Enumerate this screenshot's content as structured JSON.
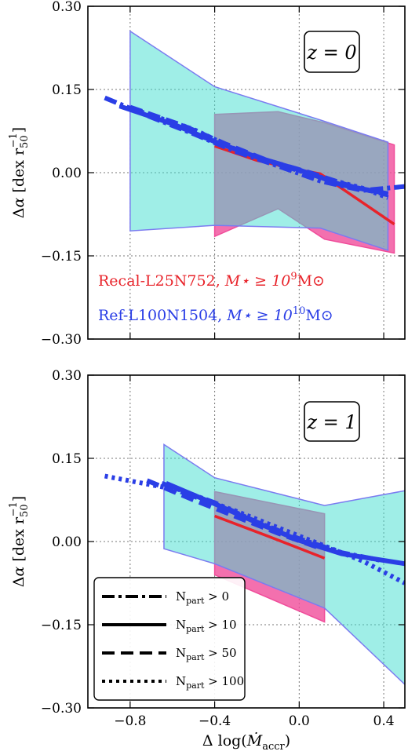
{
  "colors": {
    "recal": "#e8232a",
    "ref": "#2a3ee6",
    "recal_fill": "#f04c9a",
    "ref_fill": "#40ddd0",
    "overlap_fill": "#6aa8f0",
    "band_edge": "#7b7bf0"
  },
  "chart_data": [
    {
      "type": "line",
      "panel_label": "z = 0",
      "xlabel": "Δ log(Ṁ_accr)",
      "ylabel": "Δα [dex r50^−1]",
      "xlim": [
        -1.0,
        0.5
      ],
      "ylim": [
        -0.3,
        0.3
      ],
      "xticks": [
        -0.8,
        -0.4,
        0.0,
        0.4
      ],
      "yticks": [
        -0.3,
        -0.15,
        0.0,
        0.15,
        0.3
      ],
      "ytick_labels": [
        "−0.30",
        "−0.15",
        "0.00",
        "0.15",
        "0.30"
      ],
      "grid": true,
      "annotations": [
        {
          "prefix": "Recal-L25N752, ",
          "mass": "M⋆ ≥ 10",
          "exp": "9",
          "unit": "M⊙",
          "color": "recal"
        },
        {
          "prefix": "Ref-L100N1504, ",
          "mass": "M⋆ ≥ 10",
          "exp": "10",
          "unit": "M⊙",
          "color": "ref"
        }
      ],
      "bands": [
        {
          "series": "Recal",
          "x": [
            -0.4,
            -0.1,
            0.12,
            0.45
          ],
          "upper": [
            0.105,
            0.11,
            0.09,
            0.05
          ],
          "lower": [
            -0.115,
            -0.065,
            -0.12,
            -0.145
          ]
        },
        {
          "series": "Ref",
          "x": [
            -0.8,
            -0.4,
            0.1,
            0.42
          ],
          "upper": [
            0.255,
            0.155,
            0.095,
            0.055
          ],
          "lower": [
            -0.105,
            -0.095,
            -0.1,
            -0.14
          ]
        }
      ],
      "series": [
        {
          "name": "Recal N_part > 10",
          "style": "solid",
          "color": "recal",
          "x": [
            -0.4,
            -0.2,
            0.0,
            0.1,
            0.45
          ],
          "y": [
            0.048,
            0.022,
            0.005,
            -0.002,
            -0.093
          ]
        },
        {
          "name": "Ref N_part > 0",
          "style": "dashdot",
          "color": "ref",
          "x": [
            -0.92,
            -0.7,
            -0.5,
            -0.3,
            -0.1,
            0.1,
            0.3,
            0.5
          ],
          "y": [
            0.135,
            0.1,
            0.07,
            0.038,
            0.012,
            -0.015,
            -0.032,
            -0.025
          ]
        },
        {
          "name": "Ref N_part > 10",
          "style": "solid",
          "color": "ref",
          "x": [
            -0.85,
            -0.6,
            -0.4,
            -0.2,
            0.0,
            0.2,
            0.42
          ],
          "y": [
            0.12,
            0.088,
            0.056,
            0.028,
            0.005,
            -0.022,
            -0.038
          ]
        },
        {
          "name": "Ref N_part > 50",
          "style": "dashed",
          "color": "ref",
          "x": [
            -0.8,
            -0.55,
            -0.35,
            -0.15,
            0.05,
            0.25,
            0.42
          ],
          "y": [
            0.118,
            0.085,
            0.052,
            0.022,
            0.0,
            -0.025,
            -0.04
          ]
        },
        {
          "name": "Ref N_part > 100",
          "style": "dotted",
          "color": "ref",
          "x": [
            -0.75,
            -0.5,
            -0.3,
            -0.1,
            0.1,
            0.3,
            0.42
          ],
          "y": [
            0.11,
            0.078,
            0.042,
            0.015,
            -0.008,
            -0.028,
            -0.045
          ]
        }
      ]
    },
    {
      "type": "line",
      "panel_label": "z = 1",
      "xlabel": "Δ log(Ṁ_accr)",
      "ylabel": "Δα [dex r50^−1]",
      "xlim": [
        -1.0,
        0.5
      ],
      "ylim": [
        -0.3,
        0.3
      ],
      "xticks": [
        -0.8,
        -0.4,
        0.0,
        0.4
      ],
      "xtick_labels": [
        "−0.8",
        "−0.4",
        "0.0",
        "0.4"
      ],
      "yticks": [
        -0.3,
        -0.15,
        0.0,
        0.15,
        0.3
      ],
      "ytick_labels": [
        "−0.30",
        "−0.15",
        "0.00",
        "0.15",
        "0.30"
      ],
      "grid": true,
      "legend": {
        "placement": "lower-left",
        "entries": [
          {
            "label": "N",
            "sub": "part",
            "tail": " > 0",
            "style": "dashdot"
          },
          {
            "label": "N",
            "sub": "part",
            "tail": " > 10",
            "style": "solid"
          },
          {
            "label": "N",
            "sub": "part",
            "tail": " > 50",
            "style": "dashed"
          },
          {
            "label": "N",
            "sub": "part",
            "tail": " > 100",
            "style": "dotted"
          }
        ]
      },
      "bands": [
        {
          "series": "Recal",
          "x": [
            -0.4,
            0.12
          ],
          "upper": [
            0.09,
            0.05
          ],
          "lower": [
            -0.06,
            -0.145
          ]
        },
        {
          "series": "Ref",
          "x": [
            -0.64,
            -0.4,
            0.12,
            0.52
          ],
          "upper": [
            0.175,
            0.115,
            0.065,
            0.093
          ],
          "lower": [
            -0.013,
            -0.04,
            -0.12,
            -0.265
          ]
        }
      ],
      "series": [
        {
          "name": "Recal N_part > 10",
          "style": "solid",
          "color": "recal",
          "x": [
            -0.4,
            -0.15,
            0.12
          ],
          "y": [
            0.046,
            0.01,
            -0.03
          ]
        },
        {
          "name": "Ref N_part > 0",
          "style": "dashdot",
          "color": "ref",
          "x": [
            -0.65,
            -0.4,
            -0.2,
            0.0,
            0.2,
            0.4
          ],
          "y": [
            0.105,
            0.07,
            0.035,
            0.005,
            -0.02,
            -0.035
          ]
        },
        {
          "name": "Ref N_part > 10",
          "style": "solid",
          "color": "ref",
          "x": [
            -0.63,
            -0.4,
            -0.2,
            0.0,
            0.2,
            0.5
          ],
          "y": [
            0.105,
            0.068,
            0.034,
            0.002,
            -0.022,
            -0.04
          ]
        },
        {
          "name": "Ref N_part > 50",
          "style": "dashed",
          "color": "ref",
          "x": [
            -0.72,
            -0.5,
            -0.3,
            -0.1,
            0.1
          ],
          "y": [
            0.11,
            0.075,
            0.045,
            0.015,
            -0.012
          ]
        },
        {
          "name": "Ref N_part > 100",
          "style": "dotted",
          "color": "ref",
          "x": [
            -0.92,
            -0.6,
            -0.3,
            0.0,
            0.3,
            0.5
          ],
          "y": [
            0.118,
            0.095,
            0.055,
            0.01,
            -0.035,
            -0.075
          ]
        }
      ]
    }
  ]
}
